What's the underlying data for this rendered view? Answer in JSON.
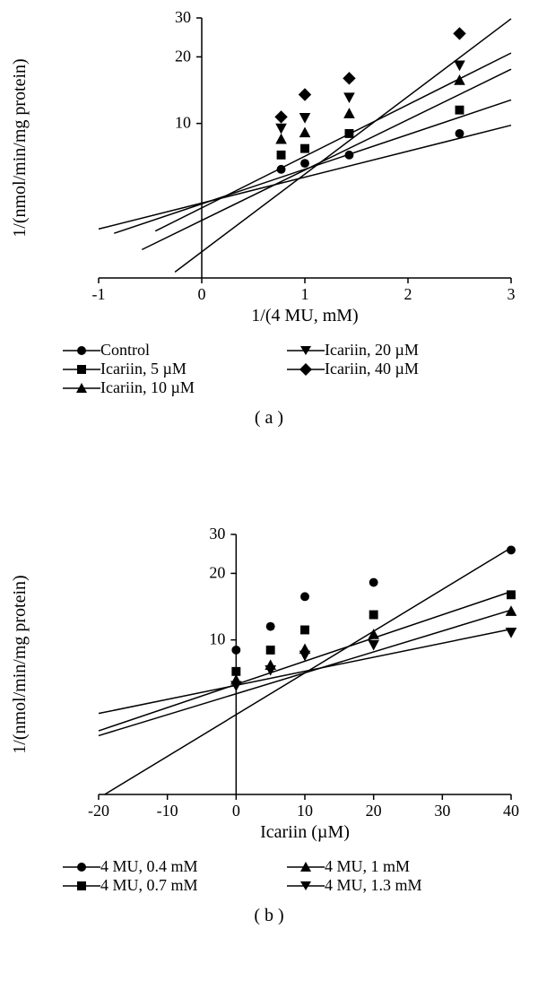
{
  "colors": {
    "background": "#ffffff",
    "ink": "#000000",
    "axis": "#000000"
  },
  "font": {
    "family": "Georgia, serif",
    "axis_label_size": 20,
    "tick_size": 18,
    "legend_size": 18
  },
  "panelA": {
    "label": "( a )",
    "type": "line+scatter",
    "xlabel": "1/(4 MU, mM)",
    "ylabel": "1/(nmol/min/mg protein)",
    "xlim": [
      -1,
      3
    ],
    "ylim": [
      2,
      30
    ],
    "xticks": [
      -1,
      0,
      1,
      2,
      3
    ],
    "yticks": [
      10,
      20,
      30
    ],
    "yscale": "log",
    "line_color": "#000000",
    "line_width": 1.5,
    "marker_fill": "#000000",
    "marker_stroke": "#000000",
    "marker_size": 9,
    "legend": [
      {
        "marker": "circle",
        "label": "Control"
      },
      {
        "marker": "square",
        "label": "Icariin, 5 µM"
      },
      {
        "marker": "triangle-up",
        "label": "Icariin, 10 µM"
      },
      {
        "marker": "triangle-down",
        "label": "Icariin, 20 µM"
      },
      {
        "marker": "diamond",
        "label": "Icariin, 40 µM"
      }
    ],
    "series": [
      {
        "name": "Control",
        "marker": "circle",
        "points": [
          [
            0.77,
            6.2
          ],
          [
            1.0,
            6.6
          ],
          [
            1.43,
            7.2
          ],
          [
            2.5,
            9.0
          ]
        ],
        "line_from_x": -1.0,
        "line_to_x": 3.0,
        "slope": 1.62,
        "intercept": 4.95
      },
      {
        "name": "Icariin 5",
        "marker": "square",
        "points": [
          [
            0.77,
            7.2
          ],
          [
            1.0,
            7.7
          ],
          [
            1.43,
            9.0
          ],
          [
            2.5,
            11.5
          ]
        ],
        "line_from_x": -0.85,
        "line_to_x": 3.0,
        "slope": 2.49,
        "intercept": 5.3
      },
      {
        "name": "Icariin 10",
        "marker": "triangle-up",
        "points": [
          [
            0.77,
            8.5
          ],
          [
            1.0,
            9.1
          ],
          [
            1.43,
            11.1
          ],
          [
            2.5,
            15.7
          ]
        ],
        "line_from_x": -0.58,
        "line_to_x": 3.0,
        "slope": 4.16,
        "intercept": 5.1
      },
      {
        "name": "Icariin 20",
        "marker": "triangle-down",
        "points": [
          [
            0.77,
            9.5
          ],
          [
            1.0,
            10.6
          ],
          [
            1.43,
            13.1
          ],
          [
            2.5,
            18.3
          ]
        ],
        "line_from_x": -0.45,
        "line_to_x": 3.0,
        "slope": 5.09,
        "intercept": 5.55
      },
      {
        "name": "Icariin 40",
        "marker": "diamond",
        "points": [
          [
            0.77,
            10.7
          ],
          [
            1.0,
            13.5
          ],
          [
            1.43,
            16.0
          ],
          [
            2.5,
            25.5
          ]
        ],
        "line_from_x": -0.26,
        "line_to_x": 3.0,
        "slope": 8.47,
        "intercept": 4.33
      }
    ]
  },
  "panelB": {
    "label": "( b )",
    "type": "line+scatter",
    "xlabel": "Icariin (µM)",
    "ylabel": "1/(nmol/min/mg protein)",
    "xlim": [
      -20,
      40
    ],
    "ylim": [
      2,
      30
    ],
    "xticks": [
      -20,
      -10,
      0,
      10,
      20,
      30,
      40
    ],
    "yticks": [
      10,
      20,
      30
    ],
    "yscale": "log",
    "line_color": "#000000",
    "line_width": 1.5,
    "marker_fill": "#000000",
    "marker_stroke": "#000000",
    "marker_size": 9,
    "legend": [
      {
        "marker": "circle",
        "label": "4 MU, 0.4 mM"
      },
      {
        "marker": "square",
        "label": "4 MU, 0.7 mM"
      },
      {
        "marker": "triangle-up",
        "label": "4 MU, 1 mM"
      },
      {
        "marker": "triangle-down",
        "label": "4 MU, 1.3 mM"
      }
    ],
    "series": [
      {
        "name": "4MU 0.4",
        "marker": "circle",
        "points": [
          [
            0,
            9.0
          ],
          [
            5,
            11.5
          ],
          [
            10,
            15.7
          ],
          [
            20,
            18.2
          ],
          [
            40,
            25.5
          ]
        ],
        "line_from_x": -20,
        "line_to_x": 40,
        "slope": 0.408,
        "intercept": 9.8
      },
      {
        "name": "4MU 0.7",
        "marker": "square",
        "points": [
          [
            0,
            7.2
          ],
          [
            5,
            9.0
          ],
          [
            10,
            11.1
          ],
          [
            20,
            13.0
          ],
          [
            40,
            16.0
          ]
        ],
        "line_from_x": -20,
        "line_to_x": 40,
        "slope": 0.211,
        "intercept": 8.1
      },
      {
        "name": "4MU 1",
        "marker": "triangle-up",
        "points": [
          [
            0,
            6.6
          ],
          [
            5,
            7.7
          ],
          [
            10,
            9.1
          ],
          [
            20,
            10.6
          ],
          [
            40,
            13.5
          ]
        ],
        "line_from_x": -20,
        "line_to_x": 40,
        "slope": 0.166,
        "intercept": 7.01
      },
      {
        "name": "4MU 1.3",
        "marker": "triangle-down",
        "points": [
          [
            0,
            6.2
          ],
          [
            5,
            7.3
          ],
          [
            10,
            8.5
          ],
          [
            20,
            9.5
          ],
          [
            40,
            10.8
          ]
        ],
        "line_from_x": -20,
        "line_to_x": 40,
        "slope": 0.109,
        "intercept": 6.83
      }
    ]
  }
}
